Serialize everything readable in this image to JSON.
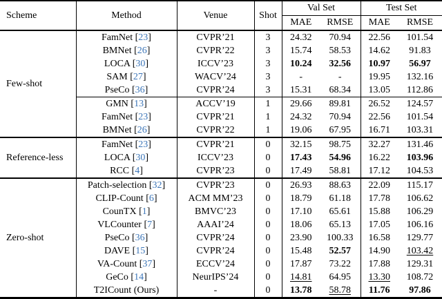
{
  "colors": {
    "citation_link": "#3d76b8",
    "text": "#000000",
    "background": "#ffffff",
    "rules": "#000000"
  },
  "header": {
    "scheme": "Scheme",
    "method": "Method",
    "venue": "Venue",
    "shot": "Shot",
    "val_set": "Val Set",
    "test_set": "Test Set",
    "mae": "MAE",
    "rmse": "RMSE"
  },
  "sections": [
    {
      "scheme": "Few-shot",
      "groups": [
        {
          "rows": [
            {
              "method": "FamNet",
              "cite": "23",
              "venue": "CVPR’21",
              "shot": "3",
              "vals": [
                {
                  "v": "24.32"
                },
                {
                  "v": "70.94"
                },
                {
                  "v": "22.56"
                },
                {
                  "v": "101.54"
                }
              ]
            },
            {
              "method": "BMNet",
              "cite": "26",
              "venue": "CVPR’22",
              "shot": "3",
              "vals": [
                {
                  "v": "15.74"
                },
                {
                  "v": "58.53"
                },
                {
                  "v": "14.62"
                },
                {
                  "v": "91.83"
                }
              ]
            },
            {
              "method": "LOCA",
              "cite": "30",
              "venue": "ICCV’23",
              "shot": "3",
              "vals": [
                {
                  "v": "10.24",
                  "s": "b"
                },
                {
                  "v": "32.56",
                  "s": "b"
                },
                {
                  "v": "10.97",
                  "s": "b"
                },
                {
                  "v": "56.97",
                  "s": "b"
                }
              ]
            },
            {
              "method": "SAM",
              "cite": "27",
              "venue": "WACV’24",
              "shot": "3",
              "vals": [
                {
                  "v": "-"
                },
                {
                  "v": "-"
                },
                {
                  "v": "19.95"
                },
                {
                  "v": "132.16"
                }
              ]
            },
            {
              "method": "PseCo",
              "cite": "36",
              "venue": "CVPR’24",
              "shot": "3",
              "vals": [
                {
                  "v": "15.31"
                },
                {
                  "v": "68.34"
                },
                {
                  "v": "13.05"
                },
                {
                  "v": "112.86"
                }
              ]
            }
          ]
        },
        {
          "rows": [
            {
              "method": "GMN",
              "cite": "13",
              "venue": "ACCV’19",
              "shot": "1",
              "vals": [
                {
                  "v": "29.66"
                },
                {
                  "v": "89.81"
                },
                {
                  "v": "26.52"
                },
                {
                  "v": "124.57"
                }
              ]
            },
            {
              "method": "FamNet",
              "cite": "23",
              "venue": "CVPR’21",
              "shot": "1",
              "vals": [
                {
                  "v": "24.32"
                },
                {
                  "v": "70.94"
                },
                {
                  "v": "22.56"
                },
                {
                  "v": "101.54"
                }
              ]
            },
            {
              "method": "BMNet",
              "cite": "26",
              "venue": "CVPR’22",
              "shot": "1",
              "vals": [
                {
                  "v": "19.06"
                },
                {
                  "v": "67.95"
                },
                {
                  "v": "16.71"
                },
                {
                  "v": "103.31"
                }
              ]
            }
          ]
        }
      ]
    },
    {
      "scheme": "Reference-less",
      "groups": [
        {
          "rows": [
            {
              "method": "FamNet",
              "cite": "23",
              "venue": "CVPR’21",
              "shot": "0",
              "vals": [
                {
                  "v": "32.15"
                },
                {
                  "v": "98.75"
                },
                {
                  "v": "32.27"
                },
                {
                  "v": "131.46"
                }
              ]
            },
            {
              "method": "LOCA",
              "cite": "30",
              "venue": "ICCV’23",
              "shot": "0",
              "vals": [
                {
                  "v": "17.43",
                  "s": "b"
                },
                {
                  "v": "54.96",
                  "s": "b"
                },
                {
                  "v": "16.22"
                },
                {
                  "v": "103.96",
                  "s": "b"
                }
              ]
            },
            {
              "method": "RCC",
              "cite": "4",
              "venue": "CVPR’23",
              "shot": "0",
              "vals": [
                {
                  "v": "17.49"
                },
                {
                  "v": "58.81"
                },
                {
                  "v": "17.12"
                },
                {
                  "v": "104.53"
                }
              ]
            }
          ]
        }
      ]
    },
    {
      "scheme": "Zero-shot",
      "groups": [
        {
          "rows": [
            {
              "method": "Patch-selection",
              "cite": "32",
              "venue": "CVPR’23",
              "shot": "0",
              "vals": [
                {
                  "v": "26.93"
                },
                {
                  "v": "88.63"
                },
                {
                  "v": "22.09"
                },
                {
                  "v": "115.17"
                }
              ]
            },
            {
              "method": "CLIP-Count",
              "cite": "6",
              "venue": "ACM MM’23",
              "shot": "0",
              "vals": [
                {
                  "v": "18.79"
                },
                {
                  "v": "61.18"
                },
                {
                  "v": "17.78"
                },
                {
                  "v": "106.62"
                }
              ]
            },
            {
              "method": "CounTX",
              "cite": "1",
              "venue": "BMVC’23",
              "shot": "0",
              "vals": [
                {
                  "v": "17.10"
                },
                {
                  "v": "65.61"
                },
                {
                  "v": "15.88"
                },
                {
                  "v": "106.29"
                }
              ]
            },
            {
              "method": "VLCounter",
              "cite": "7",
              "venue": "AAAI’24",
              "shot": "0",
              "vals": [
                {
                  "v": "18.06"
                },
                {
                  "v": "65.13"
                },
                {
                  "v": "17.05"
                },
                {
                  "v": "106.16"
                }
              ]
            },
            {
              "method": "PseCo",
              "cite": "36",
              "venue": "CVPR’24",
              "shot": "0",
              "vals": [
                {
                  "v": "23.90"
                },
                {
                  "v": "100.33"
                },
                {
                  "v": "16.58"
                },
                {
                  "v": "129.77"
                }
              ]
            },
            {
              "method": "DAVE",
              "cite": "15",
              "venue": "CVPR’24",
              "shot": "0",
              "vals": [
                {
                  "v": "15.48"
                },
                {
                  "v": "52.57",
                  "s": "b"
                },
                {
                  "v": "14.90"
                },
                {
                  "v": "103.42",
                  "s": "u"
                }
              ]
            },
            {
              "method": "VA-Count",
              "cite": "37",
              "venue": "ECCV’24",
              "shot": "0",
              "vals": [
                {
                  "v": "17.87"
                },
                {
                  "v": "73.22"
                },
                {
                  "v": "17.88"
                },
                {
                  "v": "129.31"
                }
              ]
            },
            {
              "method": "GeCo",
              "cite": "14",
              "venue": "NeurIPS’24",
              "shot": "0",
              "vals": [
                {
                  "v": "14.81",
                  "s": "u"
                },
                {
                  "v": "64.95"
                },
                {
                  "v": "13.30",
                  "s": "u"
                },
                {
                  "v": "108.72"
                }
              ]
            },
            {
              "method": "T2ICount (Ours)",
              "cite": null,
              "venue": "-",
              "shot": "0",
              "vals": [
                {
                  "v": "13.78",
                  "s": "b"
                },
                {
                  "v": "58.78",
                  "s": "u"
                },
                {
                  "v": "11.76",
                  "s": "b"
                },
                {
                  "v": "97.86",
                  "s": "b"
                }
              ]
            }
          ]
        }
      ]
    }
  ]
}
